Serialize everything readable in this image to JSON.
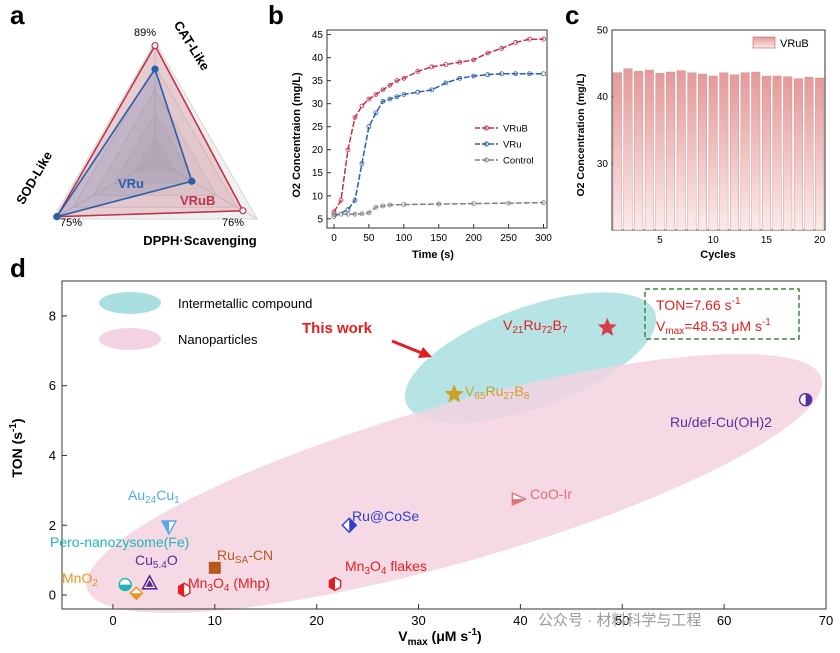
{
  "panels": {
    "a": {
      "letter": "a"
    },
    "b": {
      "letter": "b"
    },
    "c": {
      "letter": "c"
    },
    "d": {
      "letter": "d"
    }
  },
  "chart_data": [
    {
      "panel": "a",
      "type": "radar",
      "axes": [
        "CAT-Like",
        "DPPH·Scavenging",
        "SOD-Like"
      ],
      "axis_max_labels": [
        "89%",
        "76%",
        "75%"
      ],
      "series": [
        {
          "name": "VRu",
          "color": "#2a5faa",
          "values": [
            0.77,
            0.36,
            0.96
          ]
        },
        {
          "name": "VRuB",
          "color": "#c0324a",
          "values": [
            0.97,
            0.86,
            0.96
          ]
        }
      ]
    },
    {
      "panel": "b",
      "type": "line",
      "xlabel": "Time (s)",
      "ylabel": "O2 Concentraion (mg/L)",
      "xlim": [
        -10,
        305
      ],
      "ylim": [
        3,
        46
      ],
      "xticks": [
        0,
        50,
        100,
        150,
        200,
        250,
        300
      ],
      "yticks": [
        5,
        10,
        15,
        20,
        25,
        30,
        35,
        40,
        45
      ],
      "legend_position": "right",
      "series": [
        {
          "name": "VRuB",
          "color": "#c0324a",
          "x": [
            0,
            10,
            20,
            30,
            40,
            50,
            60,
            70,
            80,
            90,
            100,
            120,
            140,
            160,
            180,
            200,
            220,
            240,
            260,
            280,
            300
          ],
          "y": [
            6.5,
            9,
            20,
            27,
            29.5,
            31,
            32,
            33,
            34,
            35,
            35.5,
            37,
            38,
            38.5,
            39,
            39.5,
            41,
            42,
            43.3,
            44,
            44
          ]
        },
        {
          "name": "VRu",
          "color": "#2a5faa",
          "x": [
            0,
            20,
            30,
            40,
            50,
            60,
            70,
            80,
            90,
            100,
            120,
            140,
            160,
            180,
            200,
            220,
            240,
            260,
            280,
            300
          ],
          "y": [
            5.5,
            7,
            9,
            17,
            25,
            28,
            30.5,
            31,
            31.5,
            32,
            32.5,
            33,
            34.5,
            35.5,
            36,
            36.3,
            36.5,
            36.5,
            36.5,
            36.5
          ]
        },
        {
          "name": "Control",
          "color": "#808080",
          "x": [
            0,
            10,
            20,
            30,
            40,
            50,
            60,
            70,
            80,
            100,
            150,
            200,
            250,
            300
          ],
          "y": [
            6,
            6,
            6,
            6,
            6.1,
            6.3,
            7.5,
            7.8,
            8,
            8.1,
            8.2,
            8.3,
            8.4,
            8.5
          ]
        }
      ]
    },
    {
      "panel": "c",
      "type": "bar",
      "xlabel": "Cycles",
      "ylabel": "O2 Concentration (mg/L)",
      "ylim": [
        20,
        50
      ],
      "yticks": [
        30,
        40,
        50
      ],
      "xticks": [
        5,
        10,
        15,
        20
      ],
      "legend": "VRuB",
      "categories": [
        1,
        2,
        3,
        4,
        5,
        6,
        7,
        8,
        9,
        10,
        11,
        12,
        13,
        14,
        15,
        16,
        17,
        18,
        19,
        20
      ],
      "values": [
        43.6,
        44.2,
        43.8,
        44.0,
        43.5,
        43.7,
        43.9,
        43.6,
        43.4,
        43.1,
        43.6,
        43.3,
        43.6,
        43.7,
        43.1,
        43.1,
        43.0,
        42.7,
        42.9,
        42.8
      ],
      "bar_color_top": "#e59a9a",
      "bar_color_bottom": "#fbeaea"
    },
    {
      "panel": "d",
      "type": "scatter",
      "xlabel": "V",
      "xlabel_sub": "max",
      "xlabel_unit": " (μM s",
      "xlabel_sup": "-1",
      "xlabel_end": ")",
      "ylabel": "TON (s",
      "ylabel_sup": "-1",
      "ylabel_end": ")",
      "xlim": [
        -5,
        70
      ],
      "ylim": [
        -0.4,
        9.0
      ],
      "xticks": [
        0,
        10,
        20,
        30,
        40,
        50,
        60,
        70
      ],
      "yticks": [
        0,
        2,
        4,
        6,
        8
      ],
      "legend": [
        {
          "label": "Intermetallic compound",
          "color": "#a9dfe0"
        },
        {
          "label": "Nanoparticles",
          "color": "#f3d3e2"
        }
      ],
      "regions": [
        {
          "name": "intermetallic",
          "color": "#a9dfe0",
          "cx": 41,
          "cy": 6.8,
          "rx": 13,
          "ry": 0.8,
          "angle": -20
        },
        {
          "name": "nanoparticles",
          "color": "#f3d3e2",
          "cx": 33.5,
          "cy": 3.2,
          "rx": 37.5,
          "ry": 1.25,
          "angle": -16
        }
      ],
      "points": [
        {
          "label": "V21Ru72B7",
          "x": 48.53,
          "y": 7.66,
          "marker": "star",
          "color": "#d6404a"
        },
        {
          "label": "V65Ru27B8",
          "x": 33.5,
          "y": 5.75,
          "marker": "star",
          "color": "#c9a227"
        },
        {
          "label": "Ru/def-Cu(OH)2",
          "x": 68.0,
          "y": 5.6,
          "marker": "circle-half-left",
          "color": "#5a2d9c"
        },
        {
          "label": "CoO-Ir",
          "x": 39.8,
          "y": 2.75,
          "marker": "triangle-right",
          "color": "#e0707a"
        },
        {
          "label": "Ru@CoSe",
          "x": 23.2,
          "y": 2.0,
          "marker": "diamond-half",
          "color": "#2e3fd1"
        },
        {
          "label": "Au24Cu1",
          "x": 5.5,
          "y": 1.95,
          "marker": "triangle-down-half",
          "color": "#58a8e8"
        },
        {
          "label": "Ru SA-CN",
          "x": 10.0,
          "y": 0.78,
          "marker": "square",
          "color": "#b55a1a"
        },
        {
          "label": "Cu5.4O",
          "x": 3.6,
          "y": 0.35,
          "marker": "triangle-up",
          "color": "#5a2d9c"
        },
        {
          "label": "Pero-nanozysome(Fe)",
          "x": 1.2,
          "y": 0.3,
          "marker": "circle-half-bottom",
          "color": "#20b5b5"
        },
        {
          "label": "MnO2",
          "x": 2.3,
          "y": 0.05,
          "marker": "diamond-half-bottom",
          "color": "#e89520"
        },
        {
          "label": "Mn3O4 (Mhp)",
          "x": 7.0,
          "y": 0.15,
          "marker": "hexagon-half",
          "color": "#e02020"
        },
        {
          "label": "Mn3O4 flakes",
          "x": 21.8,
          "y": 0.32,
          "marker": "hexagon-half",
          "color": "#e02020"
        }
      ],
      "annotation": {
        "this_work": "This work",
        "ton": "TON=7.66 s",
        "ton_sup": "-1",
        "vmax": "V",
        "vmax_sub": "max",
        "vmax_val": "=48.53 μM s",
        "vmax_sup": "-1"
      }
    }
  ],
  "watermark": "公众号 · 材料科学与工程"
}
